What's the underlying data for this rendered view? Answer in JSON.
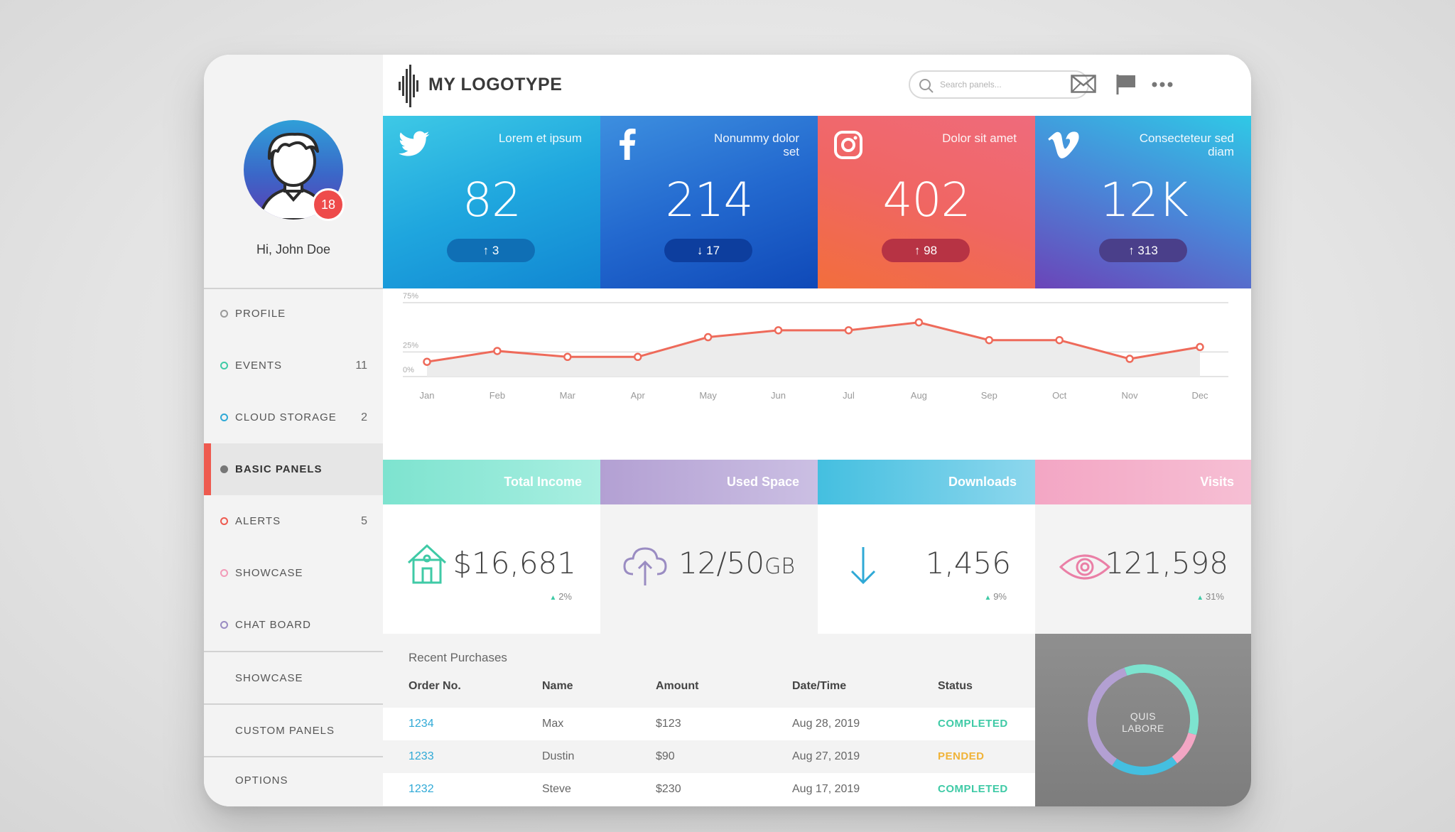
{
  "header": {
    "logo_text": "MY LOGOTYPE",
    "search_placeholder": "Search panels...",
    "icons": [
      "waveform-logo-icon",
      "search-icon",
      "mail-icon",
      "flag-icon",
      "more-icon"
    ]
  },
  "user": {
    "greeting": "Hi, John Doe",
    "badge": "18"
  },
  "sidebar": {
    "items": [
      {
        "label": "PROFILE",
        "count": "",
        "dot_color": "#9a9a9a"
      },
      {
        "label": "EVENTS",
        "count": "11",
        "dot_color": "#3fcaa6"
      },
      {
        "label": "CLOUD STORAGE",
        "count": "2",
        "dot_color": "#2fa9d6"
      },
      {
        "label": "BASIC PANELS",
        "count": "",
        "dot_color": "#777777"
      },
      {
        "label": "ALERTS",
        "count": "5",
        "dot_color": "#ee5a4f"
      },
      {
        "label": "SHOWCASE",
        "count": "",
        "dot_color": "#f29bb8"
      },
      {
        "label": "CHAT BOARD",
        "count": "",
        "dot_color": "#9a8cc2"
      }
    ],
    "sections": [
      "SHOWCASE",
      "CUSTOM PANELS",
      "OPTIONS"
    ]
  },
  "social": [
    {
      "network": "twitter",
      "icon": "twitter-icon",
      "title": "Lorem et ipsum",
      "value": "82",
      "change": "3",
      "direction": "up"
    },
    {
      "network": "facebook",
      "icon": "facebook-icon",
      "title": "Nonummy dolor set",
      "value": "214",
      "change": "17",
      "direction": "down"
    },
    {
      "network": "instagram",
      "icon": "instagram-icon",
      "title": "Dolor sit amet",
      "value": "402",
      "change": "98",
      "direction": "up"
    },
    {
      "network": "vimeo",
      "icon": "vimeo-icon",
      "title": "Consecteteur sed diam",
      "value": "12K",
      "change": "313",
      "direction": "up"
    }
  ],
  "stats": [
    {
      "title": "Total Income",
      "value": "$16,681",
      "delta": "2%",
      "icon": "house-icon",
      "color": "#3fcaa6"
    },
    {
      "title": "Used Space",
      "value": "12/50",
      "unit": "GB",
      "delta": "",
      "icon": "cloud-upload-icon",
      "color": "#9a8cc2"
    },
    {
      "title": "Downloads",
      "value": "1,456",
      "delta": "9%",
      "icon": "arrow-down-icon",
      "color": "#2fa9d6"
    },
    {
      "title": "Visits",
      "value": "121,598",
      "delta": "31%",
      "icon": "eye-icon",
      "color": "#ea7fa6"
    }
  ],
  "table": {
    "title": "Recent Purchases",
    "columns": [
      "Order No.",
      "Name",
      "Amount",
      "Date/Time",
      "Status"
    ],
    "rows": [
      {
        "order": "1234",
        "name": "Max",
        "amount": "$123",
        "date": "Aug 28, 2019",
        "status": "COMPLETED",
        "status_color": "#3fcaa6"
      },
      {
        "order": "1233",
        "name": "Dustin",
        "amount": "$90",
        "date": "Aug 27, 2019",
        "status": "PENDED",
        "status_color": "#f0b338"
      },
      {
        "order": "1232",
        "name": "Steve",
        "amount": "$230",
        "date": "Aug 17, 2019",
        "status": "COMPLETED",
        "status_color": "#3fcaa6"
      }
    ]
  },
  "donut": {
    "label_line1": "QUIS",
    "label_line2": "LABORE",
    "segments": [
      {
        "color": "#7de3cf",
        "value": 35
      },
      {
        "color": "#f3a6c4",
        "value": 10
      },
      {
        "color": "#44bfe0",
        "value": 20
      },
      {
        "color": "#b3a0d3",
        "value": 35
      }
    ]
  },
  "chart_data": {
    "type": "line",
    "categories": [
      "Jan",
      "Feb",
      "Mar",
      "Apr",
      "May",
      "Jun",
      "Jul",
      "Aug",
      "Sep",
      "Oct",
      "Nov",
      "Dec"
    ],
    "values": [
      15,
      26,
      20,
      20,
      40,
      47,
      47,
      55,
      37,
      37,
      18,
      30
    ],
    "yticks": [
      "0%",
      "25%",
      "75%"
    ],
    "ylim": [
      0,
      75
    ],
    "color": "#ee6a5a"
  }
}
